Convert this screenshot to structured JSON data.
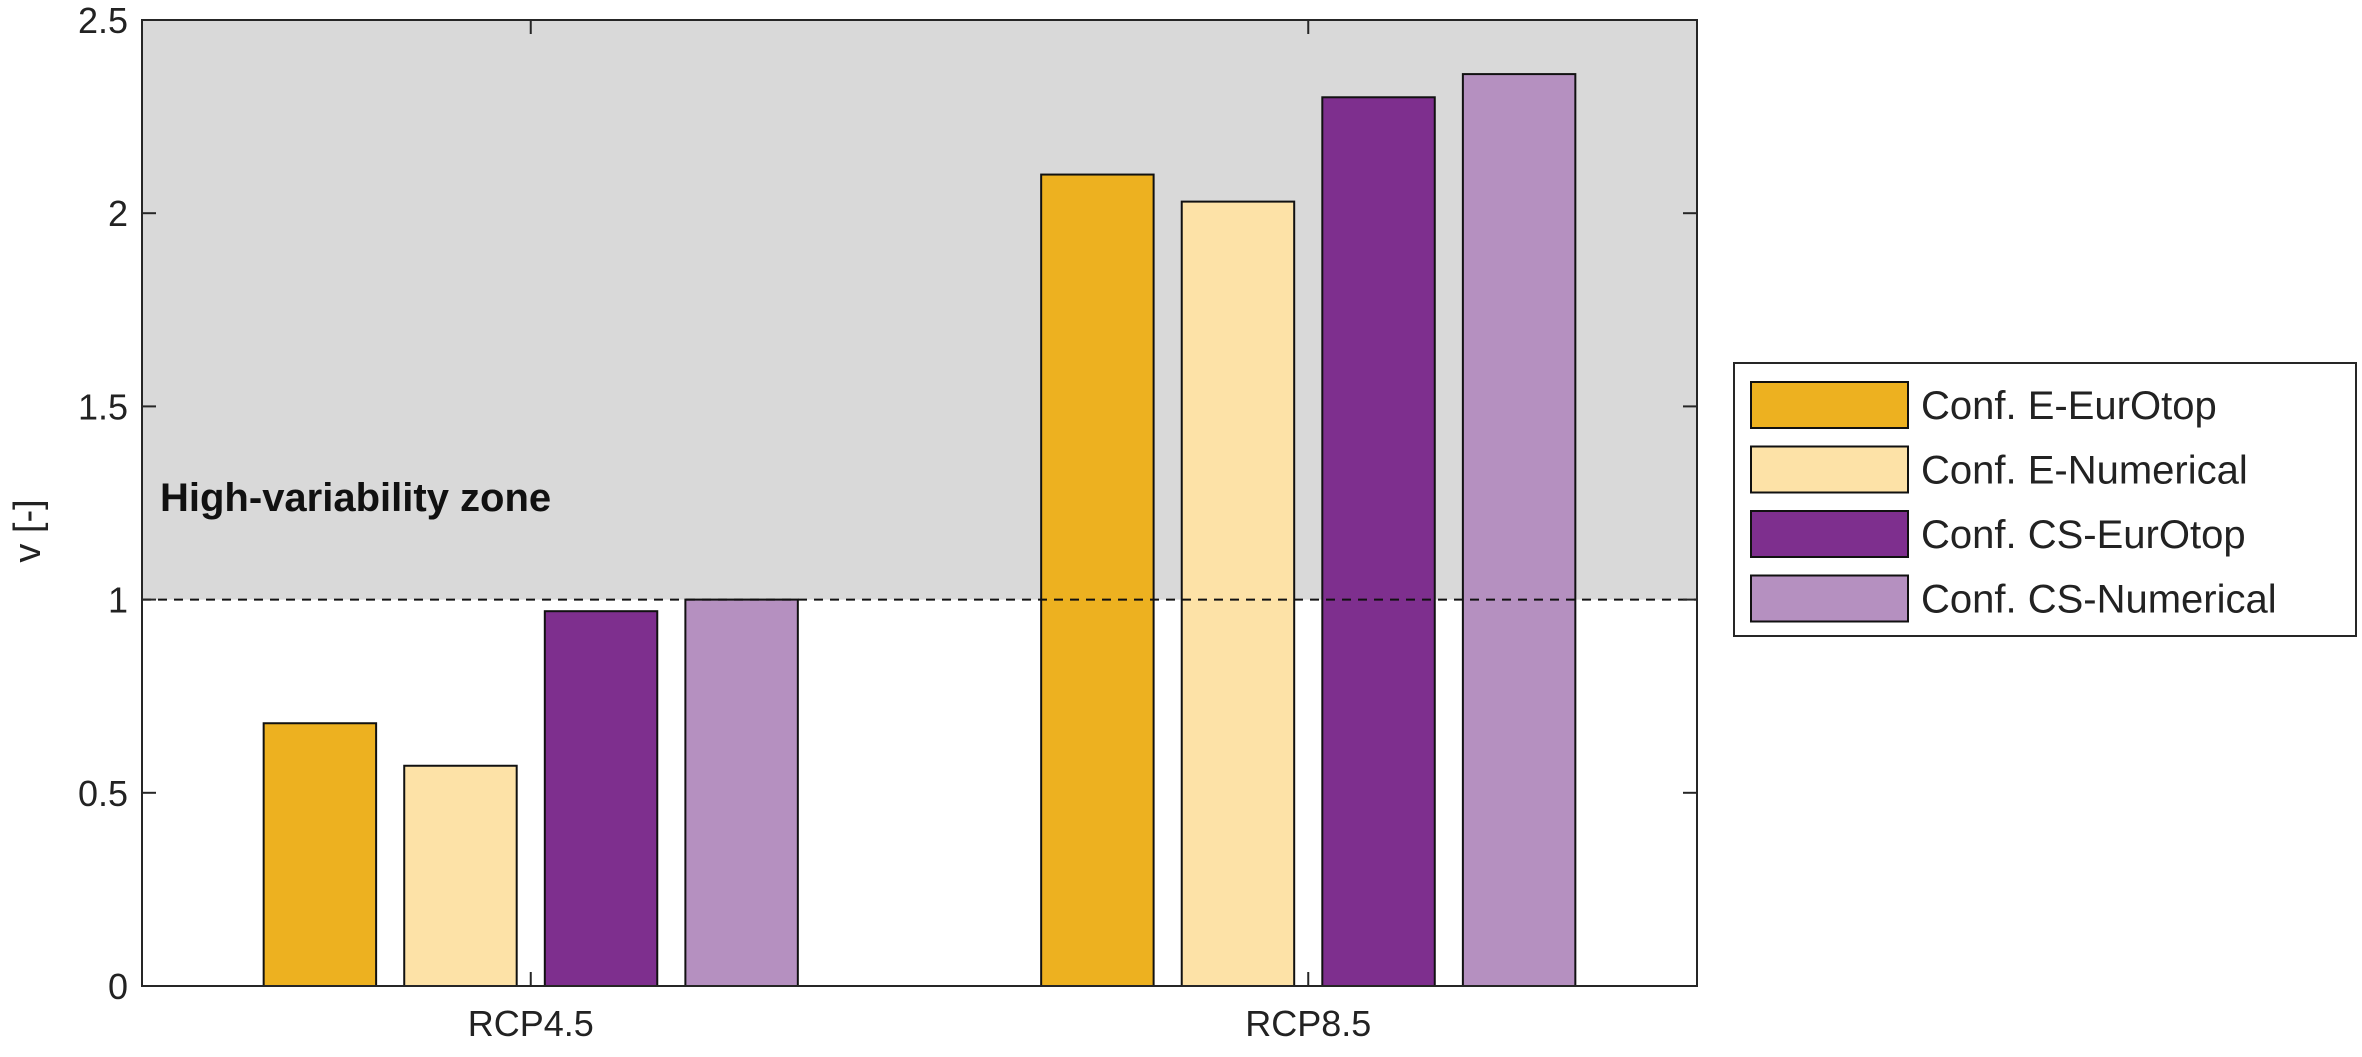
{
  "chart_data": {
    "type": "bar",
    "categories": [
      "RCP4.5",
      "RCP8.5"
    ],
    "series": [
      {
        "name": "Conf. E-EurOtop",
        "values": [
          0.68,
          2.1
        ],
        "color": "#EDB120"
      },
      {
        "name": "Conf. E-Numerical",
        "values": [
          0.57,
          2.03
        ],
        "color": "#FDE2A7"
      },
      {
        "name": "Conf. CS-EurOtop",
        "values": [
          0.97,
          2.3
        ],
        "color": "#7E2F8E"
      },
      {
        "name": "Conf. CS-Numerical",
        "values": [
          1.0,
          2.36
        ],
        "color": "#B590C0"
      }
    ],
    "title": "",
    "xlabel": "",
    "ylabel": "v [-]",
    "ylim": [
      0,
      2.5
    ],
    "yticks": [
      0,
      0.5,
      1,
      1.5,
      2,
      2.5
    ],
    "ytick_labels": [
      "0",
      "0.5",
      "1",
      "1.5",
      "2",
      "2.5"
    ],
    "threshold": {
      "value": 1,
      "style": "dashed"
    },
    "shaded_zone": {
      "from": 1,
      "to": 2.5,
      "label": "High-variability zone",
      "color": "#D9D9D9"
    },
    "legend": {
      "position": "right"
    },
    "grid": false
  }
}
